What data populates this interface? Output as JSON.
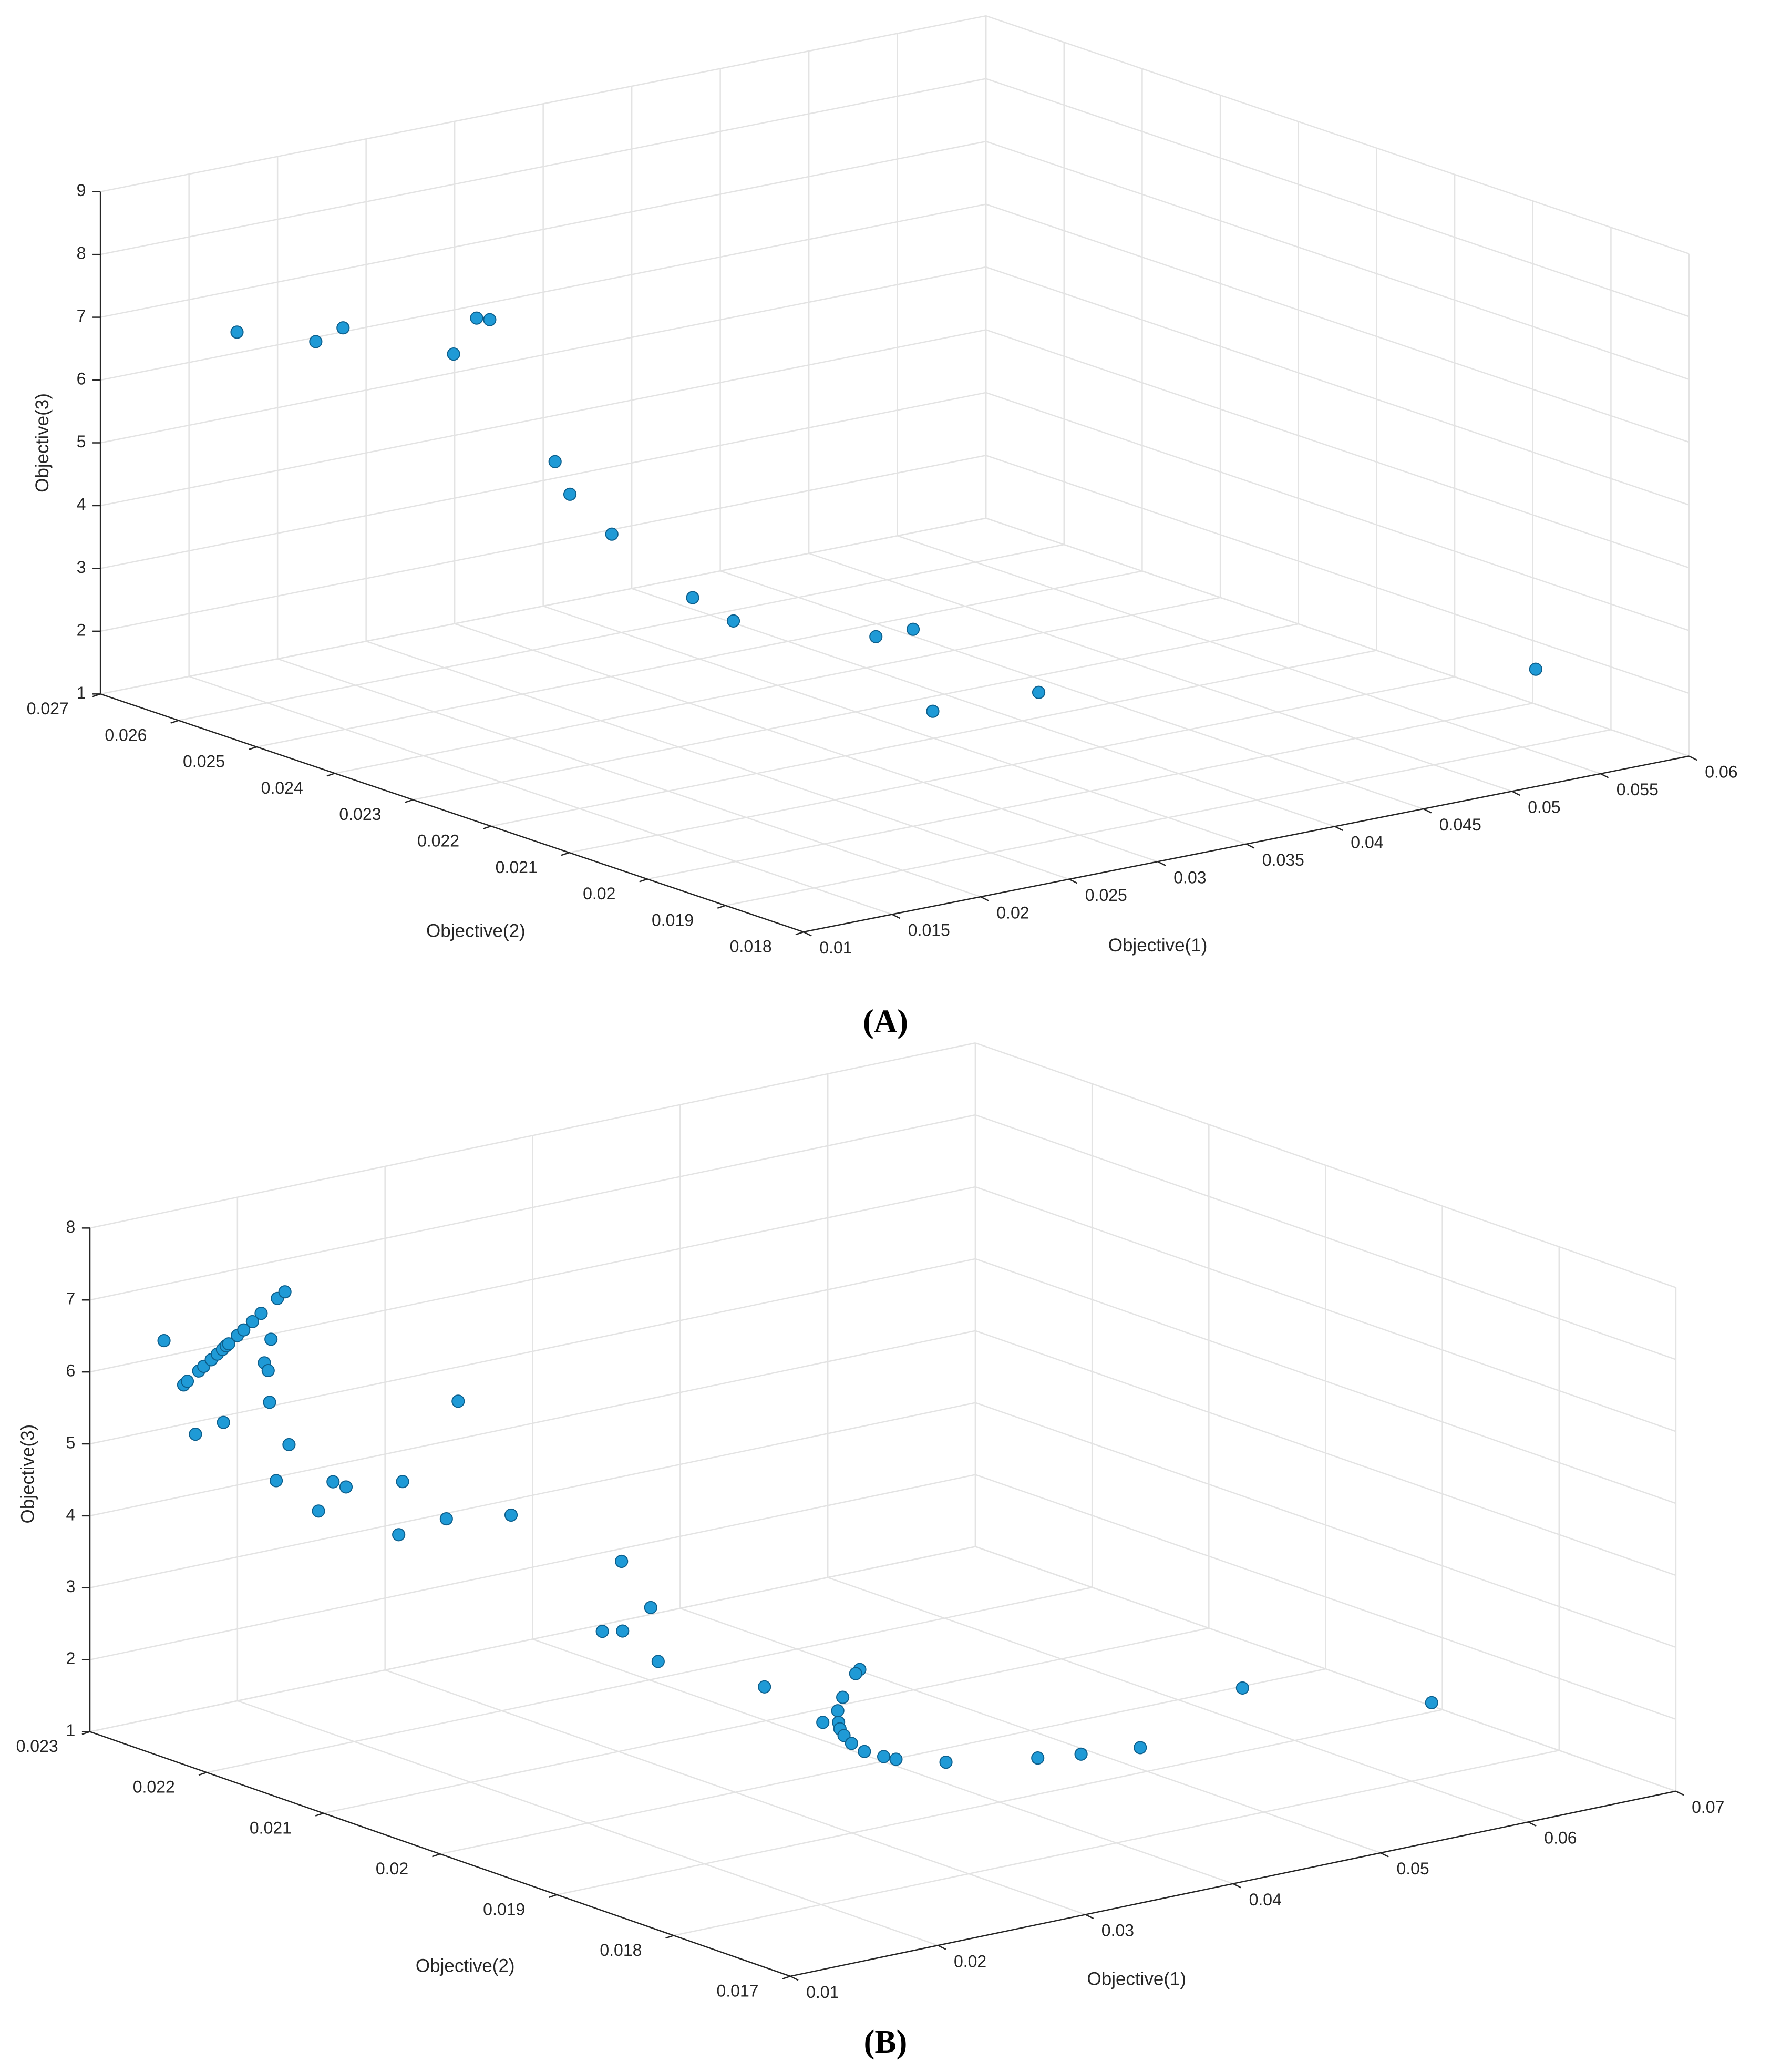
{
  "chart_data": [
    {
      "type": "scatter3d",
      "label": "(A)",
      "xlabel": "Objective(1)",
      "ylabel": "Objective(2)",
      "zlabel": "Objective(3)",
      "color": "#1f9ad6",
      "grid": true,
      "xlim": [
        0.01,
        0.06
      ],
      "ylim": [
        0.018,
        0.027
      ],
      "zlim": [
        1,
        9
      ],
      "xticks": [
        0.01,
        0.015,
        0.02,
        0.025,
        0.03,
        0.035,
        0.04,
        0.045,
        0.05,
        0.055,
        0.06
      ],
      "yticks": [
        0.018,
        0.019,
        0.02,
        0.021,
        0.022,
        0.023,
        0.024,
        0.025,
        0.026,
        0.027
      ],
      "zticks": [
        1,
        2,
        3,
        4,
        5,
        6,
        7,
        8,
        9
      ],
      "x": [
        0.0133,
        0.0151,
        0.0162,
        0.022,
        0.0233,
        0.0236,
        0.0242,
        0.0246,
        0.0252,
        0.028,
        0.0303,
        0.0357,
        0.0378,
        0.0345,
        0.0396,
        0.0584
      ],
      "y": [
        0.026,
        0.0254,
        0.0253,
        0.0252,
        0.0252,
        0.0251,
        0.0244,
        0.0243,
        0.0239,
        0.0235,
        0.0235,
        0.0229,
        0.0229,
        0.0219,
        0.0217,
        0.0196
      ],
      "z": [
        7,
        7,
        7.2,
        6.5,
        7,
        7,
        5,
        4.5,
        4,
        3,
        2.5,
        2.2,
        2.2,
        1.5,
        1.6,
        1.8
      ]
    },
    {
      "type": "scatter3d",
      "label": "(B)",
      "xlabel": "Objective(1)",
      "ylabel": "Objective(2)",
      "zlabel": "Objective(3)",
      "color": "#1f9ad6",
      "grid": true,
      "xlim": [
        0.01,
        0.07
      ],
      "ylim": [
        0.017,
        0.023
      ],
      "zlim": [
        1,
        8
      ],
      "xticks": [
        0.01,
        0.02,
        0.03,
        0.04,
        0.05,
        0.06,
        0.07
      ],
      "yticks": [
        0.017,
        0.018,
        0.019,
        0.02,
        0.021,
        0.022,
        0.023
      ],
      "zticks": [
        1,
        2,
        3,
        4,
        5,
        6,
        7,
        8
      ],
      "x": [
        0.0117,
        0.0124,
        0.01265,
        0.01342,
        0.01376,
        0.01427,
        0.01468,
        0.01503,
        0.01528,
        0.01545,
        0.01604,
        0.01647,
        0.01706,
        0.01765,
        0.01875,
        0.01926,
        0.0199,
        0.0185,
        0.0186,
        0.0183,
        0.01565,
        0.01652,
        0.01835,
        0.0178,
        0.0192,
        0.02,
        0.0194,
        0.0213,
        0.0208,
        0.023,
        0.0262,
        0.0238,
        0.034,
        0.034,
        0.0308,
        0.0317,
        0.033,
        0.0353,
        0.0397,
        0.0399,
        0.0391,
        0.039,
        0.0387,
        0.0385,
        0.0382,
        0.038,
        0.0378,
        0.0378,
        0.038,
        0.0382,
        0.0404,
        0.0448,
        0.0471,
        0.0504,
        0.0563,
        0.0669
      ],
      "y": [
        0.02258,
        0.0225,
        0.0225,
        0.0225,
        0.0225,
        0.0225,
        0.0225,
        0.0225,
        0.0225,
        0.0225,
        0.0225,
        0.0225,
        0.0225,
        0.0225,
        0.0225,
        0.0225,
        0.0227,
        0.02258,
        0.02256,
        0.02251,
        0.02281,
        0.02268,
        0.02235,
        0.02239,
        0.02208,
        0.02207,
        0.02223,
        0.02175,
        0.02172,
        0.02159,
        0.02144,
        0.02159,
        0.02148,
        0.02123,
        0.02124,
        0.02118,
        0.02104,
        0.02042,
        0.02016,
        0.02022,
        0.02023,
        0.02026,
        0.02035,
        0.02019,
        0.02014,
        0.02008,
        0.01999,
        0.01988,
        0.01974,
        0.01966,
        0.01951,
        0.01928,
        0.0192,
        0.01911,
        0.01898,
        0.0187
      ],
      "z": [
        6.6,
        6,
        6.04,
        6.15,
        6.2,
        6.27,
        6.33,
        6.38,
        6.42,
        6.44,
        6.53,
        6.59,
        6.68,
        6.77,
        6.93,
        7,
        6.2,
        6,
        5.9,
        5.5,
        5,
        5.2,
        5,
        4.5,
        4.6,
        4.5,
        4.1,
        4.7,
        4,
        4.2,
        4.2,
        5.8,
        3.2,
        2.7,
        2.5,
        2.5,
        2.1,
        2,
        2.2,
        2.1,
        1.8,
        1.6,
        1.4,
        1.5,
        1.45,
        1.4,
        1.35,
        1.3,
        1.3,
        1.3,
        1.25,
        1.25,
        1.25,
        1.25,
        1.9,
        1.4
      ]
    }
  ]
}
